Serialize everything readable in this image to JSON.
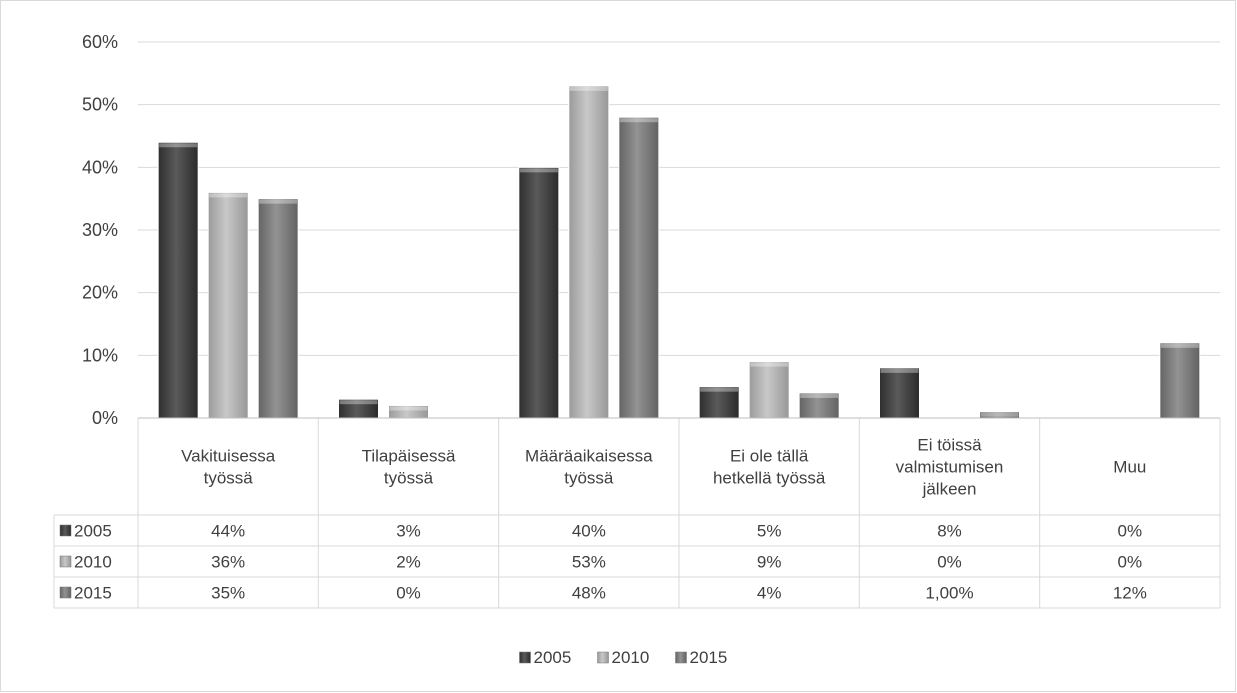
{
  "chart_data": {
    "type": "bar",
    "categories": [
      [
        "Vakituisessa",
        "työssä"
      ],
      [
        "Tilapäisessä",
        "työssä"
      ],
      [
        "Määräaikaisessa",
        "työssä"
      ],
      [
        "Ei ole tällä",
        "hetkellä työssä"
      ],
      [
        "Ei töissä",
        "valmistumisen",
        "jälkeen"
      ],
      [
        "Muu"
      ]
    ],
    "series": [
      {
        "name": "2005",
        "values": [
          44,
          3,
          40,
          5,
          8,
          0
        ],
        "labels": [
          "44%",
          "3%",
          "40%",
          "5%",
          "8%",
          "0%"
        ],
        "color": "#4a4a4a"
      },
      {
        "name": "2010",
        "values": [
          36,
          2,
          53,
          9,
          0,
          0
        ],
        "labels": [
          "36%",
          "2%",
          "53%",
          "9%",
          "0%",
          "0%"
        ],
        "color": "#b8b8b8"
      },
      {
        "name": "2015",
        "values": [
          35,
          0,
          48,
          4,
          1,
          12
        ],
        "labels": [
          "35%",
          "0%",
          "48%",
          "4%",
          "1,00%",
          "12%"
        ],
        "color": "#828282"
      }
    ],
    "yticks": [
      "0%",
      "10%",
      "20%",
      "30%",
      "40%",
      "50%",
      "60%"
    ],
    "ylim": [
      0,
      60
    ],
    "grid": true,
    "legend_position": "bottom",
    "data_table": true
  }
}
